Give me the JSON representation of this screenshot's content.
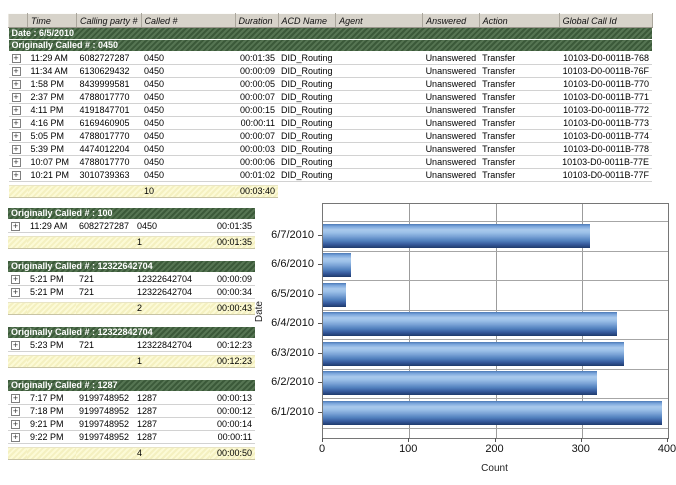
{
  "ui": {
    "expand_glyph": "+"
  },
  "colors": {
    "group_band_green": "#44603f",
    "summary_yellow": "#fbf8d0",
    "header_gray": "#d7d3ca",
    "bar_blue": "#6f9fd8"
  },
  "table": {
    "header": [
      "Time",
      "Calling party #",
      "Called #",
      "Duration",
      "ACD Name",
      "Agent",
      "Answered",
      "Action",
      "Global Call Id"
    ],
    "date_band": "Date : 6/5/2010",
    "main_group": {
      "label": "Originally Called # : 0450",
      "rows": [
        {
          "time": "11:29 AM",
          "calling": "6082727287",
          "called": "0450",
          "duration": "00:01:35",
          "acd": "DID_Routing",
          "answered": "Unanswered",
          "action": "Transfer",
          "global_id": "10103-D0-0011B-768"
        },
        {
          "time": "11:34 AM",
          "calling": "6130629432",
          "called": "0450",
          "duration": "00:00:09",
          "acd": "DID_Routing",
          "answered": "Unanswered",
          "action": "Transfer",
          "global_id": "10103-D0-0011B-76F"
        },
        {
          "time": "1:58 PM",
          "calling": "8439999581",
          "called": "0450",
          "duration": "00:00:05",
          "acd": "DID_Routing",
          "answered": "Unanswered",
          "action": "Transfer",
          "global_id": "10103-D0-0011B-770"
        },
        {
          "time": "2:37 PM",
          "calling": "4788017770",
          "called": "0450",
          "duration": "00:00:07",
          "acd": "DID_Routing",
          "answered": "Unanswered",
          "action": "Transfer",
          "global_id": "10103-D0-0011B-771"
        },
        {
          "time": "4:11 PM",
          "calling": "4191847701",
          "called": "0450",
          "duration": "00:00:15",
          "acd": "DID_Routing",
          "answered": "Unanswered",
          "action": "Transfer",
          "global_id": "10103-D0-0011B-772"
        },
        {
          "time": "4:16 PM",
          "calling": "6169460905",
          "called": "0450",
          "duration": "00:00:11",
          "acd": "DID_Routing",
          "answered": "Unanswered",
          "action": "Transfer",
          "global_id": "10103-D0-0011B-773"
        },
        {
          "time": "5:05 PM",
          "calling": "4788017770",
          "called": "0450",
          "duration": "00:00:07",
          "acd": "DID_Routing",
          "answered": "Unanswered",
          "action": "Transfer",
          "global_id": "10103-D0-0011B-774"
        },
        {
          "time": "5:39 PM",
          "calling": "4474012204",
          "called": "0450",
          "duration": "00:00:03",
          "acd": "DID_Routing",
          "answered": "Unanswered",
          "action": "Transfer",
          "global_id": "10103-D0-0011B-778"
        },
        {
          "time": "10:07 PM",
          "calling": "4788017770",
          "called": "0450",
          "duration": "00:00:06",
          "acd": "DID_Routing",
          "answered": "Unanswered",
          "action": "Transfer",
          "global_id": "10103-D0-0011B-77E"
        },
        {
          "time": "10:21 PM",
          "calling": "3010739363",
          "called": "0450",
          "duration": "00:01:02",
          "acd": "DID_Routing",
          "answered": "Unanswered",
          "action": "Transfer",
          "global_id": "10103-D0-0011B-77F"
        }
      ],
      "summary_count": "10",
      "summary_duration": "00:03:40"
    },
    "sub_groups": [
      {
        "label": "Originally Called # : 100",
        "rows": [
          {
            "time": "11:29 AM",
            "calling": "6082727287",
            "called": "0450",
            "duration": "00:01:35"
          }
        ],
        "summary_count": "1",
        "summary_duration": "00:01:35"
      },
      {
        "label": "Originally Called # : 12322642704",
        "rows": [
          {
            "time": "5:21 PM",
            "calling": "721",
            "called": "12322642704",
            "duration": "00:00:09"
          },
          {
            "time": "5:21 PM",
            "calling": "721",
            "called": "12322642704",
            "duration": "00:00:34"
          }
        ],
        "summary_count": "2",
        "summary_duration": "00:00:43"
      },
      {
        "label": "Originally Called # : 12322842704",
        "rows": [
          {
            "time": "5:23 PM",
            "calling": "721",
            "called": "12322842704",
            "duration": "00:12:23"
          }
        ],
        "summary_count": "1",
        "summary_duration": "00:12:23"
      },
      {
        "label": "Originally Called # : 1287",
        "rows": [
          {
            "time": "7:17 PM",
            "calling": "9199748952",
            "called": "1287",
            "duration": "00:00:13"
          },
          {
            "time": "7:18 PM",
            "calling": "9199748952",
            "called": "1287",
            "duration": "00:00:12"
          },
          {
            "time": "9:21 PM",
            "calling": "9199748952",
            "called": "1287",
            "duration": "00:00:14"
          },
          {
            "time": "9:22 PM",
            "calling": "9199748952",
            "called": "1287",
            "duration": "00:00:11"
          }
        ],
        "summary_count": "4",
        "summary_duration": "00:00:50"
      }
    ]
  },
  "chart_data": {
    "type": "bar",
    "orientation": "horizontal",
    "title": "",
    "categories": [
      "6/7/2010",
      "6/6/2010",
      "6/5/2010",
      "6/4/2010",
      "6/3/2010",
      "6/2/2010",
      "6/1/2010"
    ],
    "values": [
      310,
      32,
      27,
      341,
      349,
      318,
      393
    ],
    "xlabel": "Count",
    "ylabel": "Date",
    "xlim": [
      0,
      400
    ],
    "x_ticks": [
      0,
      100,
      200,
      300,
      400
    ],
    "grid": true,
    "legend": false
  }
}
